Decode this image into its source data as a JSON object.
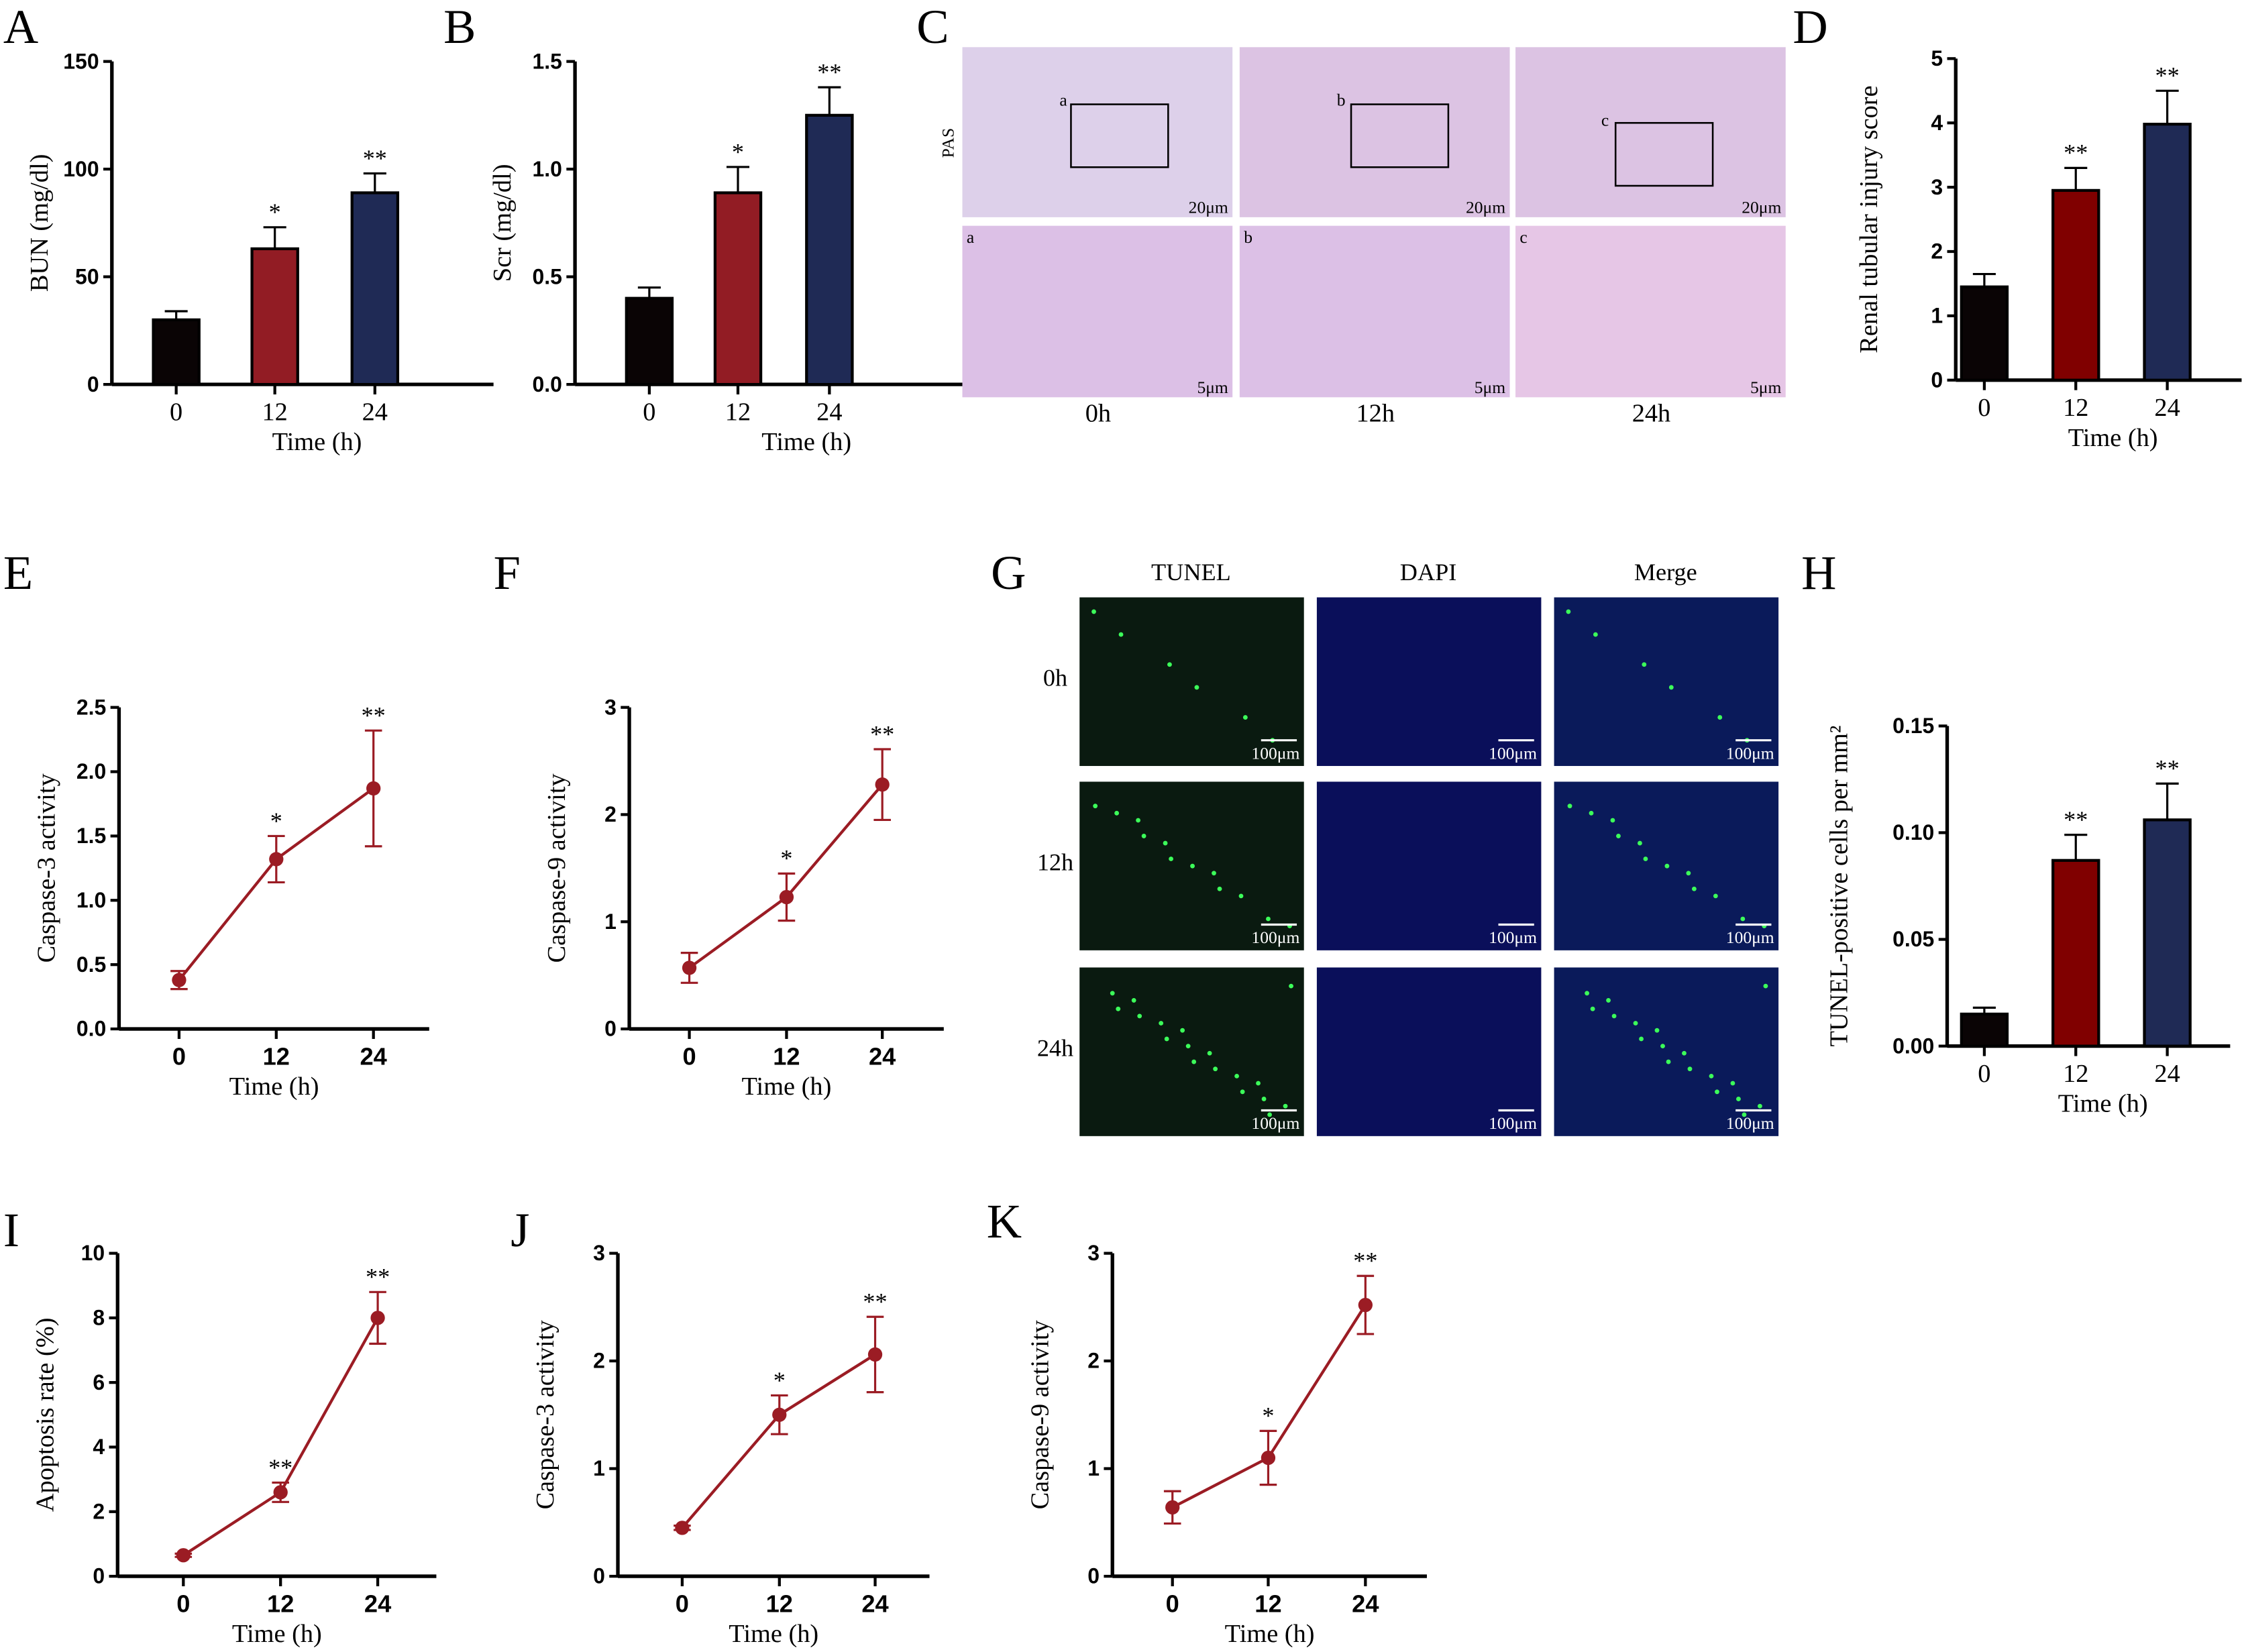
{
  "panel_labels": [
    "A",
    "B",
    "C",
    "D",
    "E",
    "F",
    "G",
    "H",
    "I",
    "J",
    "K"
  ],
  "colors": {
    "control": "#0a0405",
    "h12": "#921c24",
    "h12_D_H": "#800000",
    "h24": "#1f2a55",
    "line": "#9b1c24"
  },
  "chart_data": [
    {
      "id": "A",
      "type": "bar",
      "categories": [
        "0",
        "12",
        "24"
      ],
      "values": [
        30,
        63,
        89
      ],
      "errors": [
        4,
        10,
        9
      ],
      "significance": [
        "",
        "*",
        "**"
      ],
      "xlabel": "Time (h)",
      "ylabel": "BUN (mg/dl)",
      "ylim": [
        0,
        150
      ],
      "yticks": [
        "0",
        "50",
        "100",
        "150"
      ]
    },
    {
      "id": "B",
      "type": "bar",
      "categories": [
        "0",
        "12",
        "24"
      ],
      "values": [
        0.4,
        0.89,
        1.25
      ],
      "errors": [
        0.05,
        0.12,
        0.13
      ],
      "significance": [
        "",
        "*",
        "**"
      ],
      "xlabel": "Time (h)",
      "ylabel": "Scr (mg/dl)",
      "ylim": [
        0,
        1.5
      ],
      "yticks": [
        "0.0",
        "0.5",
        "1.0",
        "1.5"
      ]
    },
    {
      "id": "D",
      "type": "bar",
      "categories": [
        "0",
        "12",
        "24"
      ],
      "values": [
        1.45,
        2.95,
        3.98
      ],
      "errors": [
        0.2,
        0.35,
        0.52
      ],
      "significance": [
        "",
        "**",
        "**"
      ],
      "xlabel": "Time (h)",
      "ylabel": "Renal tubular injury score",
      "ylim": [
        0,
        5
      ],
      "yticks": [
        "0",
        "1",
        "2",
        "3",
        "4",
        "5"
      ]
    },
    {
      "id": "E",
      "type": "line",
      "categories": [
        "0",
        "12",
        "24"
      ],
      "values": [
        0.38,
        1.32,
        1.87
      ],
      "errors": [
        0.07,
        0.18,
        0.45
      ],
      "significance": [
        "",
        "*",
        "**"
      ],
      "xlabel": "Time (h)",
      "ylabel": "Caspase-3 activity",
      "ylim": [
        0,
        2.5
      ],
      "yticks": [
        "0.0",
        "0.5",
        "1.0",
        "1.5",
        "2.0",
        "2.5"
      ]
    },
    {
      "id": "F",
      "type": "line",
      "categories": [
        "0",
        "12",
        "24"
      ],
      "values": [
        0.57,
        1.23,
        2.28
      ],
      "errors": [
        0.14,
        0.22,
        0.33
      ],
      "significance": [
        "",
        "*",
        "**"
      ],
      "xlabel": "Time (h)",
      "ylabel": "Caspase-9 activity",
      "ylim": [
        0,
        3
      ],
      "yticks": [
        "0",
        "1",
        "2",
        "3"
      ]
    },
    {
      "id": "H",
      "type": "bar",
      "categories": [
        "0",
        "12",
        "24"
      ],
      "values": [
        0.015,
        0.087,
        0.106
      ],
      "errors": [
        0.003,
        0.012,
        0.017
      ],
      "significance": [
        "",
        "**",
        "**"
      ],
      "xlabel": "Time (h)",
      "ylabel": "TUNEL-positive cells per mm²",
      "ylim": [
        0,
        0.15
      ],
      "yticks": [
        "0.00",
        "0.05",
        "0.10",
        "0.15"
      ]
    },
    {
      "id": "I",
      "type": "line",
      "categories": [
        "0",
        "12",
        "24"
      ],
      "values": [
        0.65,
        2.6,
        8.0
      ],
      "errors": [
        0.05,
        0.3,
        0.8
      ],
      "significance": [
        "",
        "**",
        "**"
      ],
      "xlabel": "Time (h)",
      "ylabel": "Apoptosis rate (%)",
      "ylim": [
        0,
        10
      ],
      "yticks": [
        "0",
        "2",
        "4",
        "6",
        "8",
        "10"
      ]
    },
    {
      "id": "J",
      "type": "line",
      "categories": [
        "0",
        "12",
        "24"
      ],
      "values": [
        0.45,
        1.5,
        2.06
      ],
      "errors": [
        0.02,
        0.18,
        0.35
      ],
      "significance": [
        "",
        "*",
        "**"
      ],
      "xlabel": "Time (h)",
      "ylabel": "Caspase-3 activity",
      "ylim": [
        0,
        3
      ],
      "yticks": [
        "0",
        "1",
        "2",
        "3"
      ]
    },
    {
      "id": "K",
      "type": "line",
      "categories": [
        "0",
        "12",
        "24"
      ],
      "values": [
        0.64,
        1.1,
        2.52
      ],
      "errors": [
        0.15,
        0.25,
        0.27
      ],
      "significance": [
        "",
        "*",
        "**"
      ],
      "xlabel": "Time (h)",
      "ylabel": "Caspase-9 activity",
      "ylim": [
        0,
        3
      ],
      "yticks": [
        "0",
        "1",
        "2",
        "3"
      ]
    }
  ],
  "panel_C": {
    "stain": "PAS",
    "columns": [
      "0h",
      "12h",
      "24h"
    ],
    "insets": [
      "a",
      "b",
      "c"
    ],
    "scale_top": "20μm",
    "scale_bottom": "5μm"
  },
  "panel_G": {
    "columns": [
      "TUNEL",
      "DAPI",
      "Merge"
    ],
    "rows": [
      "0h",
      "12h",
      "24h"
    ],
    "scale": "100μm"
  }
}
